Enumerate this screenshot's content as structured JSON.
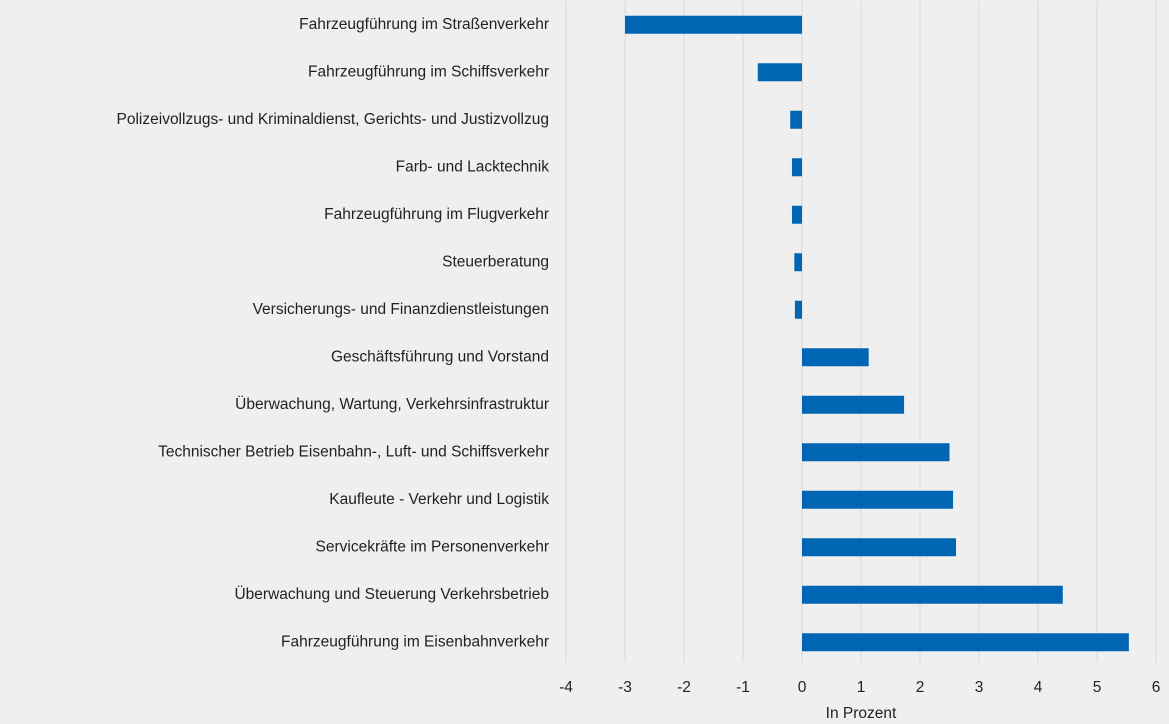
{
  "chart_data": {
    "type": "barh",
    "categories": [
      "Fahrzeugführung im Straßenverkehr",
      "Fahrzeugführung im Schiffsverkehr",
      "Polizeivollzugs- und Kriminaldienst, Gerichts- und Justizvollzug",
      "Farb- und Lacktechnik",
      "Fahrzeugführung im Flugverkehr",
      "Steuerberatung",
      "Versicherungs- und Finanzdienstleistungen",
      "Geschäftsführung und Vorstand",
      "Überwachung, Wartung, Verkehrsinfrastruktur",
      "Technischer Betrieb Eisenbahn-, Luft- und Schiffsverkehr",
      "Kaufleute - Verkehr und Logistik",
      "Servicekräfte im Personenverkehr",
      "Überwachung und Steuerung Verkehrsbetrieb",
      "Fahrzeugführung im Eisenbahnverkehr"
    ],
    "values": [
      -3.0,
      -0.75,
      -0.2,
      -0.17,
      -0.17,
      -0.13,
      -0.12,
      1.13,
      1.73,
      2.5,
      2.56,
      2.61,
      4.42,
      5.54
    ],
    "color": "#0066b3",
    "xlabel": "In Prozent",
    "xlim": [
      -4,
      6
    ],
    "xticks": [
      -4,
      -3,
      -2,
      -1,
      0,
      1,
      2,
      3,
      4,
      5,
      6
    ],
    "grid": true
  }
}
